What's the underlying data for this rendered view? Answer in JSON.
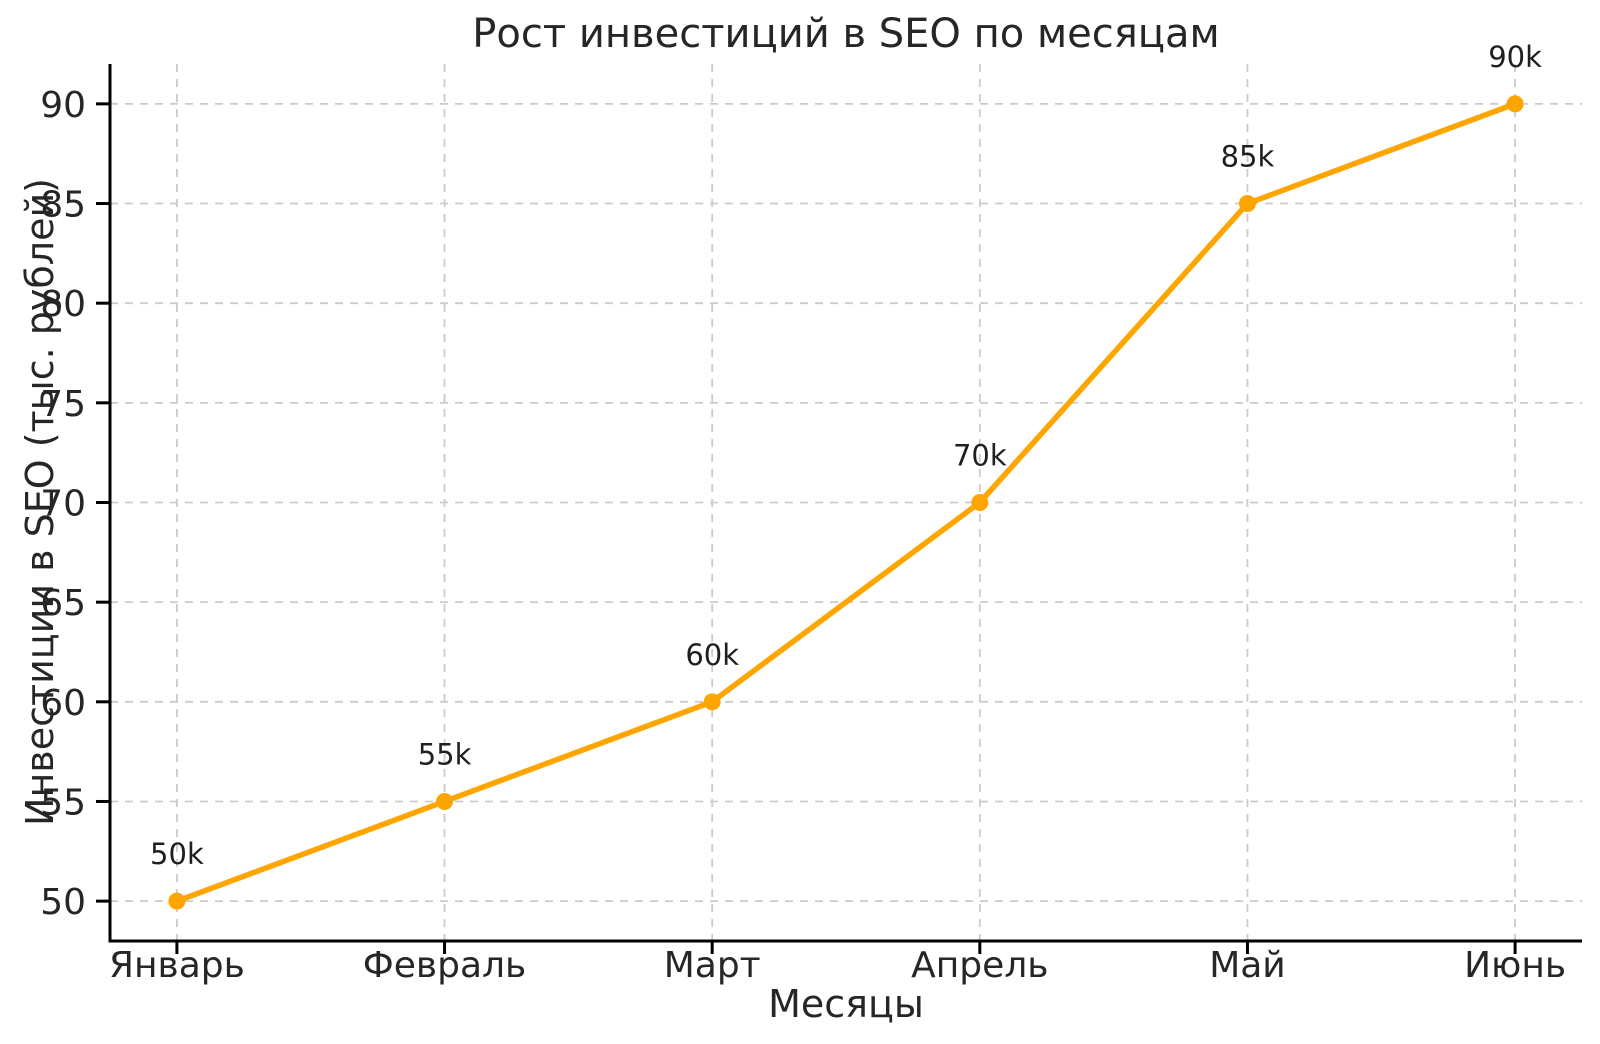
{
  "chart_data": {
    "type": "line",
    "title": "Рост инвестиций в SEO по месяцам",
    "xlabel": "Месяцы",
    "ylabel": "Инвестиции в SEO (тыс. рублей)",
    "categories": [
      "Январь",
      "Февраль",
      "Март",
      "Апрель",
      "Май",
      "Июнь"
    ],
    "values": [
      50,
      55,
      60,
      70,
      85,
      90
    ],
    "point_labels": [
      "50k",
      "55k",
      "60k",
      "70k",
      "85k",
      "90k"
    ],
    "yticks": [
      50,
      55,
      60,
      65,
      70,
      75,
      80,
      85,
      90
    ],
    "ylim": [
      48,
      92
    ],
    "x_margin": 0.25,
    "grid": true,
    "grid_style": "dashed",
    "legend": false,
    "colors": {
      "line": "#FFA500",
      "marker": "#FFA500",
      "grid": "#cbcbcb",
      "text": "#262626",
      "axis": "#000000",
      "background": "#ffffff"
    }
  }
}
